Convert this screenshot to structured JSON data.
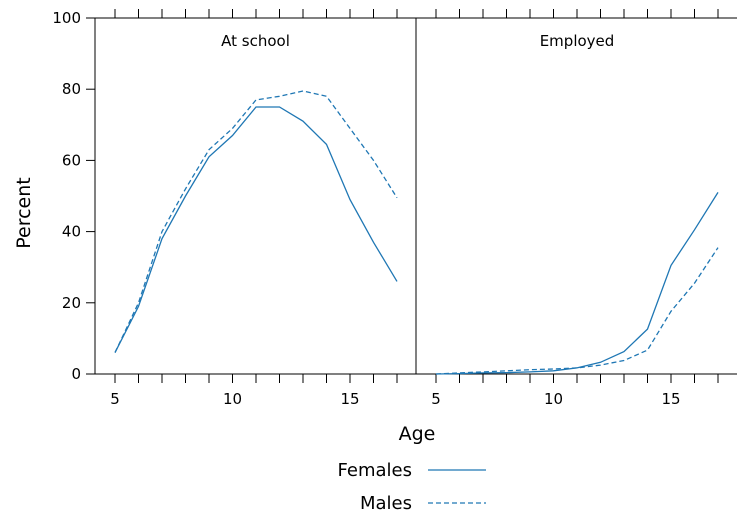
{
  "chart_data": {
    "type": "line",
    "xlabel": "Age",
    "ylabel": "Percent",
    "xlim": [
      4.5,
      17.5
    ],
    "ylim": [
      0,
      100
    ],
    "x_ticks": [
      5,
      10,
      15
    ],
    "y_ticks": [
      0,
      20,
      40,
      60,
      80,
      100
    ],
    "x_minor_ticks": [
      5,
      6,
      7,
      8,
      9,
      10,
      11,
      12,
      13,
      14,
      15,
      16,
      17
    ],
    "legend_placement": "bottom",
    "line_color": "#1f77b4",
    "panels": [
      {
        "title": "At school",
        "series": [
          {
            "name": "Females",
            "style": "solid",
            "x": [
              5,
              6,
              7,
              8,
              9,
              10,
              11,
              12,
              13,
              14,
              15,
              16,
              17
            ],
            "values": [
              6,
              19,
              38,
              50,
              61,
              67,
              75,
              75,
              71,
              64.5,
              49,
              37,
              26
            ]
          },
          {
            "name": "Males",
            "style": "dashed",
            "x": [
              5,
              6,
              7,
              8,
              9,
              10,
              11,
              12,
              13,
              14,
              15,
              16,
              17
            ],
            "values": [
              6,
              20,
              40,
              52,
              63,
              69,
              77,
              78,
              79.5,
              78,
              69,
              60,
              49.5
            ]
          }
        ]
      },
      {
        "title": "Employed",
        "series": [
          {
            "name": "Females",
            "style": "solid",
            "x": [
              5,
              6,
              7,
              8,
              9,
              10,
              11,
              12,
              13,
              14,
              15,
              16,
              17
            ],
            "values": [
              0,
              0.1,
              0.3,
              0.4,
              0.6,
              0.9,
              1.7,
              3.3,
              6.3,
              12.6,
              30.5,
              40.5,
              51
            ]
          },
          {
            "name": "Males",
            "style": "dashed",
            "x": [
              5,
              6,
              7,
              8,
              9,
              10,
              11,
              12,
              13,
              14,
              15,
              16,
              17
            ],
            "values": [
              0,
              0.3,
              0.6,
              0.9,
              1.2,
              1.4,
              1.7,
              2.5,
              3.8,
              6.7,
              17.6,
              25.5,
              35.5
            ]
          }
        ]
      }
    ],
    "legend": [
      {
        "label": "Females",
        "style": "solid"
      },
      {
        "label": "Males",
        "style": "dashed"
      }
    ]
  }
}
